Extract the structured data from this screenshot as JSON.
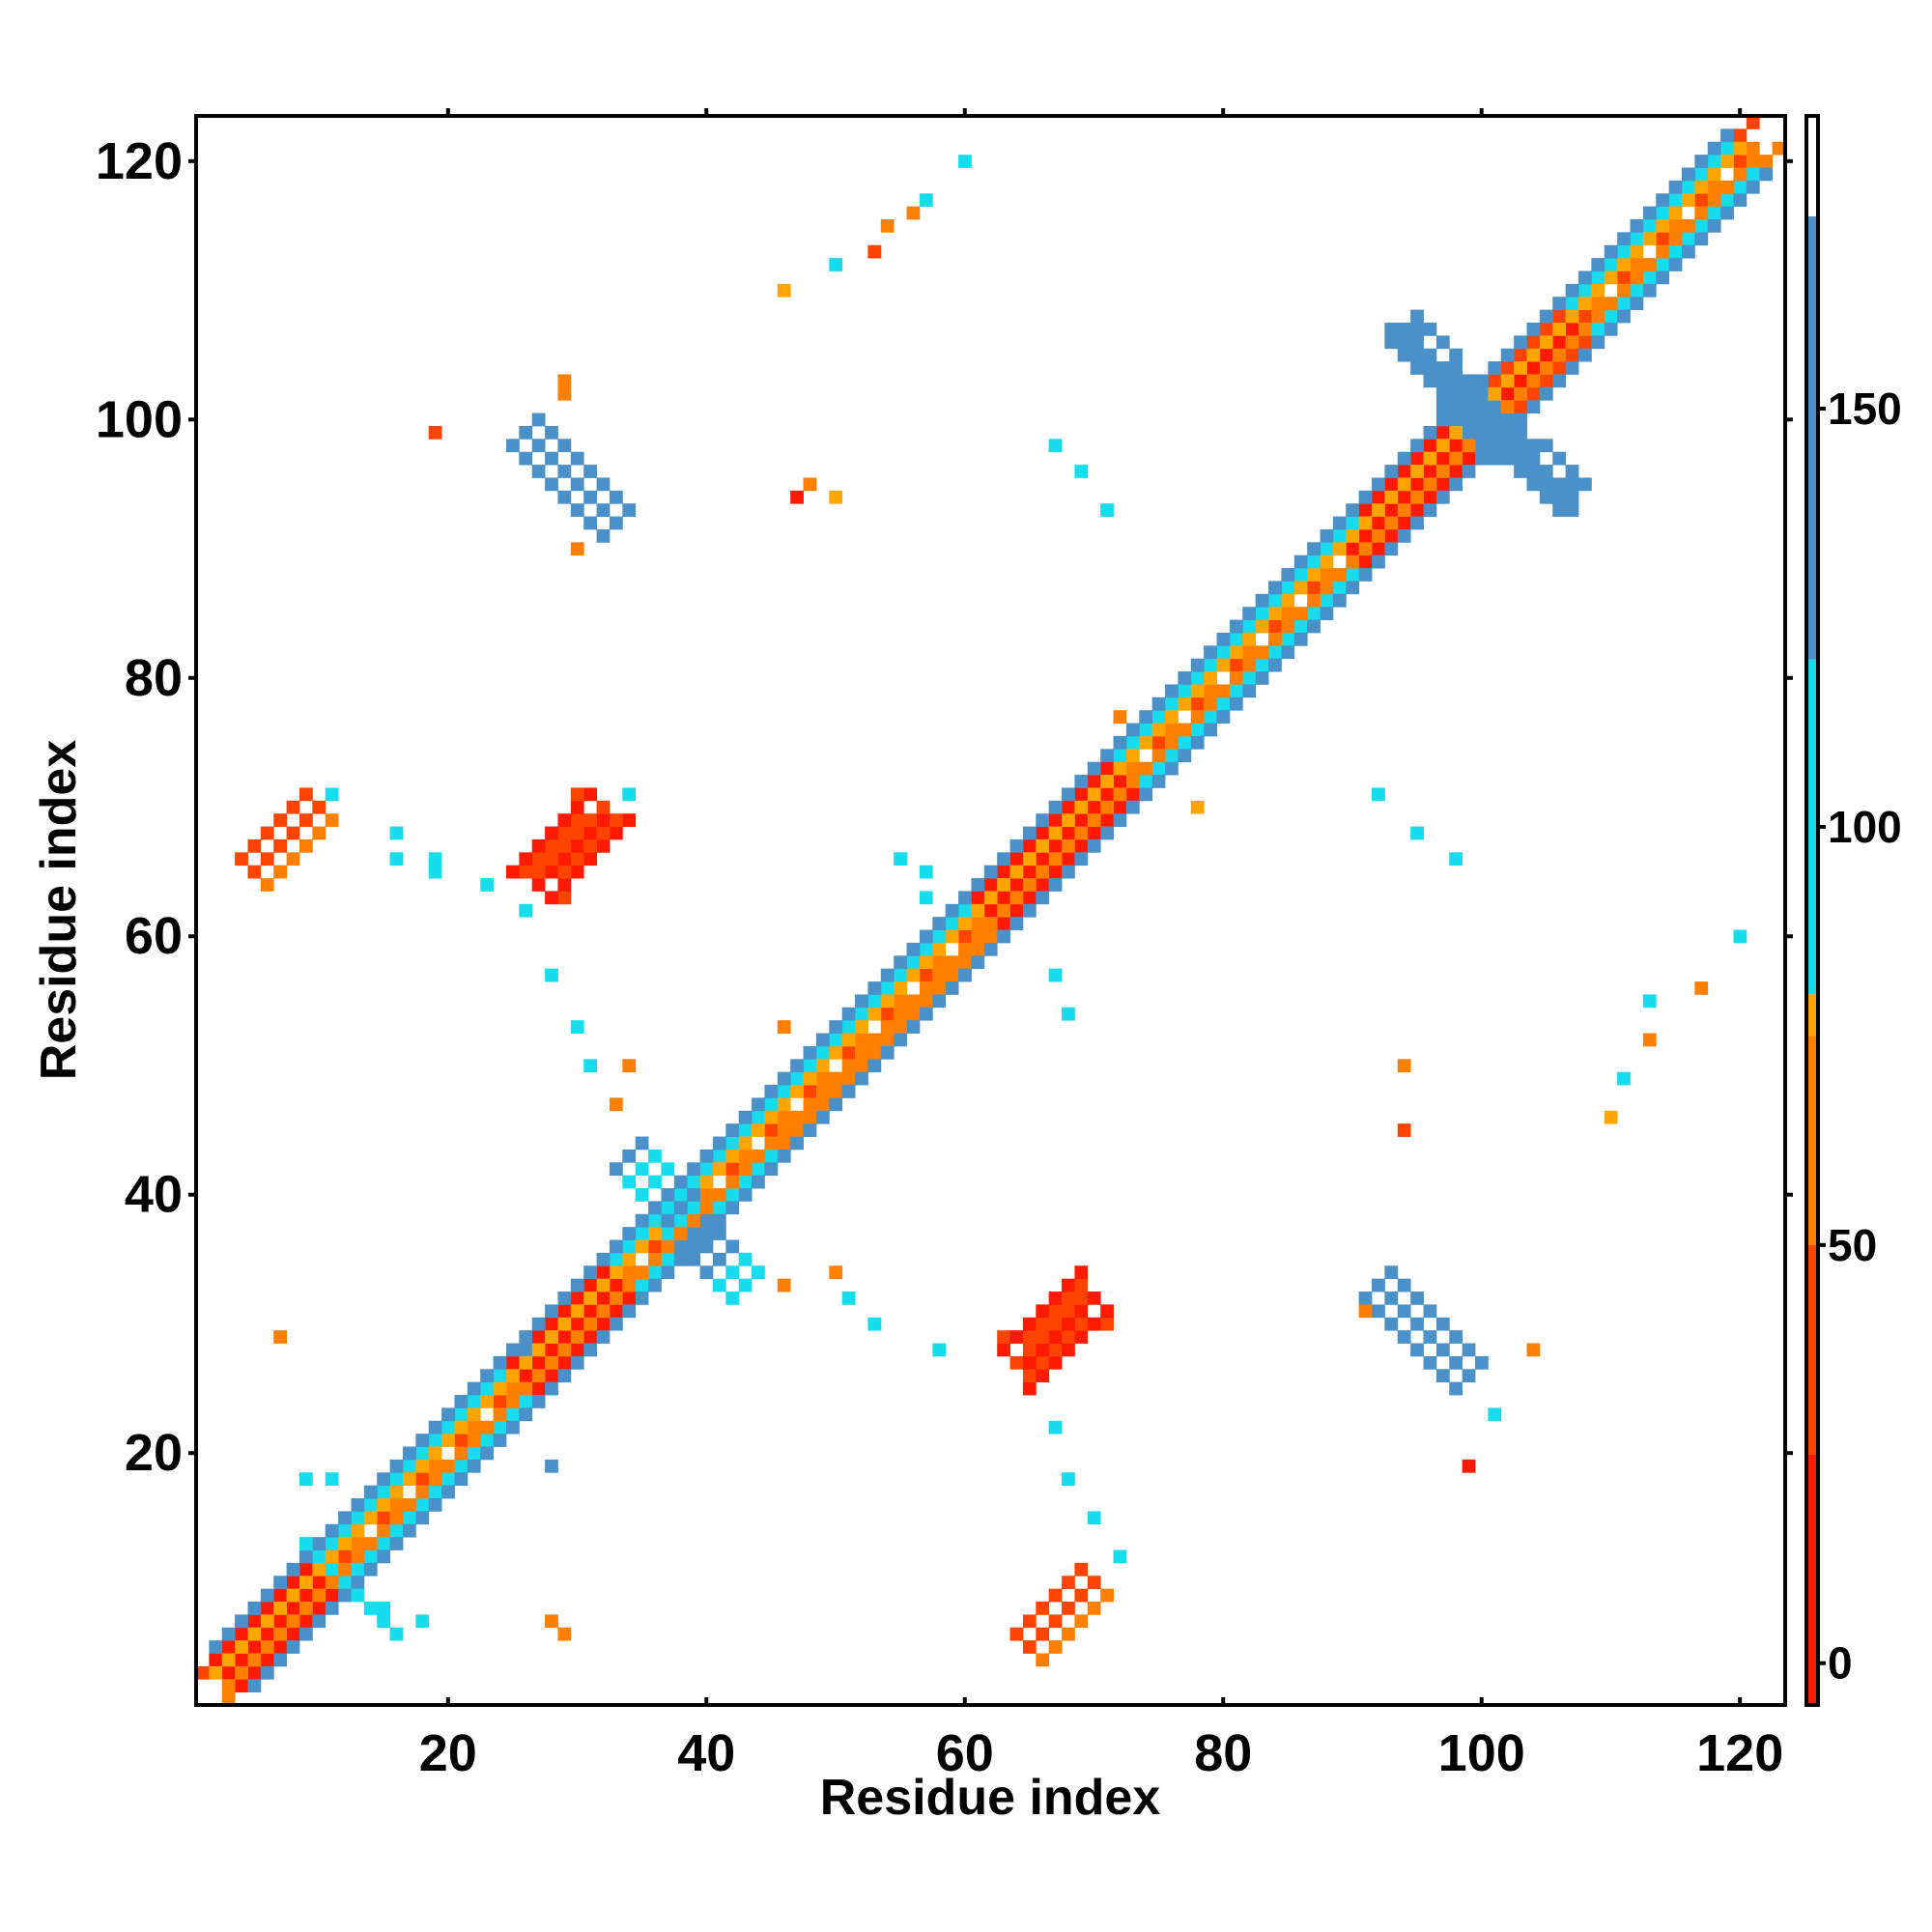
{
  "chart_data": {
    "type": "heatmap",
    "xlabel": "Residue index",
    "ylabel": "Residue index",
    "xlim": [
      1,
      123
    ],
    "ylim": [
      1,
      123
    ],
    "x_ticks": [
      20,
      40,
      60,
      80,
      100,
      120
    ],
    "y_ticks": [
      20,
      40,
      60,
      80,
      100,
      120
    ],
    "colorbar": {
      "range": [
        -5,
        185
      ],
      "ticks": [
        0,
        50,
        100,
        150
      ],
      "bins": [
        {
          "from": -5,
          "to": 25,
          "color": "#ff1a00"
        },
        {
          "from": 25,
          "to": 50,
          "color": "#ff4400"
        },
        {
          "from": 50,
          "to": 75,
          "color": "#ff8000"
        },
        {
          "from": 75,
          "to": 80,
          "color": "#ffa500"
        },
        {
          "from": 80,
          "to": 120,
          "color": "#17dcee"
        },
        {
          "from": 120,
          "to": 173,
          "color": "#4a90c9"
        },
        {
          "from": 173,
          "to": 185,
          "color": "#ffffff"
        }
      ]
    },
    "segments": [
      {
        "x": [
          2,
          122
        ],
        "y": [
          2,
          122
        ],
        "value": 45,
        "width": 3
      },
      {
        "x": [
          3,
          121
        ],
        "y": [
          2,
          120
        ],
        "value": 70,
        "width": 2
      },
      {
        "x": [
          2,
          120
        ],
        "y": [
          3,
          121
        ],
        "value": 70,
        "width": 2
      },
      {
        "x": [
          4,
          121
        ],
        "y": [
          2,
          119
        ],
        "value": 100,
        "width": 2
      },
      {
        "x": [
          2,
          119
        ],
        "y": [
          4,
          121
        ],
        "value": 100,
        "width": 2
      },
      {
        "x": [
          5,
          122
        ],
        "y": [
          2,
          119
        ],
        "value": 140,
        "width": 1.5
      },
      {
        "x": [
          2,
          119
        ],
        "y": [
          5,
          122
        ],
        "value": 140,
        "width": 1.5
      },
      {
        "x": [
          3,
          10
        ],
        "y": [
          3,
          10
        ],
        "value": 10,
        "width": 3
      },
      {
        "x": [
          26,
          33
        ],
        "y": [
          26,
          33
        ],
        "value": 10,
        "width": 3
      },
      {
        "x": [
          62,
          72
        ],
        "y": [
          62,
          72
        ],
        "value": 10,
        "width": 3
      },
      {
        "x": [
          90,
          100
        ],
        "y": [
          90,
          100
        ],
        "value": 10,
        "width": 3
      },
      {
        "x": [
          100,
          107
        ],
        "y": [
          100,
          107
        ],
        "value": 35,
        "width": 3
      },
      {
        "x": [
          5,
          10
        ],
        "y": [
          65,
          70
        ],
        "value": 40,
        "width": 4
      },
      {
        "x": [
          65,
          70
        ],
        "y": [
          5,
          10
        ],
        "value": 40,
        "width": 4
      },
      {
        "x": [
          27,
          32
        ],
        "y": [
          64,
          70
        ],
        "value": 30,
        "width": 5
      },
      {
        "x": [
          64,
          70
        ],
        "y": [
          27,
          32
        ],
        "value": 30,
        "width": 5
      },
      {
        "x": [
          26,
          33
        ],
        "y": [
          99,
          92
        ],
        "value": 150,
        "width": 4
      },
      {
        "x": [
          92,
          99
        ],
        "y": [
          33,
          26
        ],
        "value": 150,
        "width": 4
      },
      {
        "x": [
          94,
          101
        ],
        "y": [
          107,
          99
        ],
        "value": 150,
        "width": 3.5
      },
      {
        "x": [
          99,
          107
        ],
        "y": [
          101,
          94
        ],
        "value": 150,
        "width": 3.5
      },
      {
        "x": [
          34,
          38
        ],
        "y": [
          43,
          39
        ],
        "value": 125,
        "width": 3
      },
      {
        "x": [
          38,
          43
        ],
        "y": [
          38,
          33
        ],
        "value": 125,
        "width": 3
      },
      {
        "x": [
          9,
          16
        ],
        "y": [
          13,
          6
        ],
        "value": 105,
        "width": 2
      },
      {
        "x": [
          44,
          60
        ],
        "y": [
          46,
          62
        ],
        "value": 105,
        "width": 2
      },
      {
        "x": [
          80,
          90
        ],
        "y": [
          82,
          92
        ],
        "value": 100,
        "width": 2
      },
      {
        "x": [
          46,
          62
        ],
        "y": [
          44,
          60
        ],
        "value": 60,
        "width": 2
      }
    ],
    "points": [
      {
        "x": 19,
        "y": 99,
        "value": 45
      },
      {
        "x": 29,
        "y": 102,
        "value": 55
      },
      {
        "x": 29,
        "y": 103,
        "value": 60
      },
      {
        "x": 30,
        "y": 90,
        "value": 70
      },
      {
        "x": 47,
        "y": 94,
        "value": 20
      },
      {
        "x": 48,
        "y": 95,
        "value": 60
      },
      {
        "x": 50,
        "y": 94,
        "value": 75
      },
      {
        "x": 46,
        "y": 110,
        "value": 75
      },
      {
        "x": 50,
        "y": 112,
        "value": 95
      },
      {
        "x": 53,
        "y": 113,
        "value": 40
      },
      {
        "x": 54,
        "y": 115,
        "value": 55
      },
      {
        "x": 56,
        "y": 116,
        "value": 65
      },
      {
        "x": 57,
        "y": 117,
        "value": 95
      },
      {
        "x": 60,
        "y": 120,
        "value": 95
      },
      {
        "x": 67,
        "y": 98,
        "value": 100
      },
      {
        "x": 69,
        "y": 96,
        "value": 100
      },
      {
        "x": 71,
        "y": 93,
        "value": 100
      },
      {
        "x": 92,
        "y": 71,
        "value": 100
      },
      {
        "x": 95,
        "y": 68,
        "value": 100
      },
      {
        "x": 98,
        "y": 66,
        "value": 100
      },
      {
        "x": 120,
        "y": 60,
        "value": 95
      },
      {
        "x": 117,
        "y": 56,
        "value": 70
      },
      {
        "x": 113,
        "y": 55,
        "value": 95
      },
      {
        "x": 113,
        "y": 52,
        "value": 70
      },
      {
        "x": 111,
        "y": 49,
        "value": 95
      },
      {
        "x": 110,
        "y": 46,
        "value": 75
      },
      {
        "x": 94,
        "y": 45,
        "value": 40
      },
      {
        "x": 94,
        "y": 50,
        "value": 70
      },
      {
        "x": 91,
        "y": 31,
        "value": 70
      },
      {
        "x": 104,
        "y": 28,
        "value": 60
      },
      {
        "x": 101,
        "y": 23,
        "value": 95
      },
      {
        "x": 99,
        "y": 19,
        "value": 20
      },
      {
        "x": 67,
        "y": 22,
        "value": 95
      },
      {
        "x": 68,
        "y": 18,
        "value": 95
      },
      {
        "x": 70,
        "y": 15,
        "value": 95
      },
      {
        "x": 72,
        "y": 12,
        "value": 95
      },
      {
        "x": 58,
        "y": 28,
        "value": 100
      },
      {
        "x": 51,
        "y": 32,
        "value": 95
      },
      {
        "x": 46,
        "y": 33,
        "value": 70
      },
      {
        "x": 50,
        "y": 34,
        "value": 55
      },
      {
        "x": 53,
        "y": 30,
        "value": 95
      },
      {
        "x": 7,
        "y": 29,
        "value": 70
      },
      {
        "x": 28,
        "y": 7,
        "value": 70
      },
      {
        "x": 28,
        "y": 57,
        "value": 100
      },
      {
        "x": 30,
        "y": 53,
        "value": 100
      },
      {
        "x": 31,
        "y": 50,
        "value": 95
      },
      {
        "x": 34,
        "y": 50,
        "value": 50
      },
      {
        "x": 33,
        "y": 47,
        "value": 70
      },
      {
        "x": 46,
        "y": 53,
        "value": 55
      },
      {
        "x": 67,
        "y": 57,
        "value": 95
      },
      {
        "x": 68,
        "y": 54,
        "value": 100
      },
      {
        "x": 55,
        "y": 66,
        "value": 95
      },
      {
        "x": 57,
        "y": 65,
        "value": 95
      },
      {
        "x": 57,
        "y": 63,
        "value": 95
      },
      {
        "x": 16,
        "y": 68,
        "value": 95
      },
      {
        "x": 16,
        "y": 66,
        "value": 95
      },
      {
        "x": 19,
        "y": 66,
        "value": 95
      },
      {
        "x": 19,
        "y": 65,
        "value": 95
      },
      {
        "x": 23,
        "y": 64,
        "value": 95
      },
      {
        "x": 26,
        "y": 62,
        "value": 100
      },
      {
        "x": 11,
        "y": 71,
        "value": 95
      },
      {
        "x": 34,
        "y": 71,
        "value": 95
      },
      {
        "x": 72,
        "y": 77,
        "value": 70
      },
      {
        "x": 78,
        "y": 70,
        "value": 75
      },
      {
        "x": 28,
        "y": 19,
        "value": 130
      },
      {
        "x": 26,
        "y": 28,
        "value": 135
      },
      {
        "x": 9,
        "y": 18,
        "value": 95
      },
      {
        "x": 11,
        "y": 18,
        "value": 95
      },
      {
        "x": 15,
        "y": 8,
        "value": 95
      },
      {
        "x": 18,
        "y": 7,
        "value": 95
      },
      {
        "x": 29,
        "y": 6,
        "value": 70
      }
    ]
  }
}
